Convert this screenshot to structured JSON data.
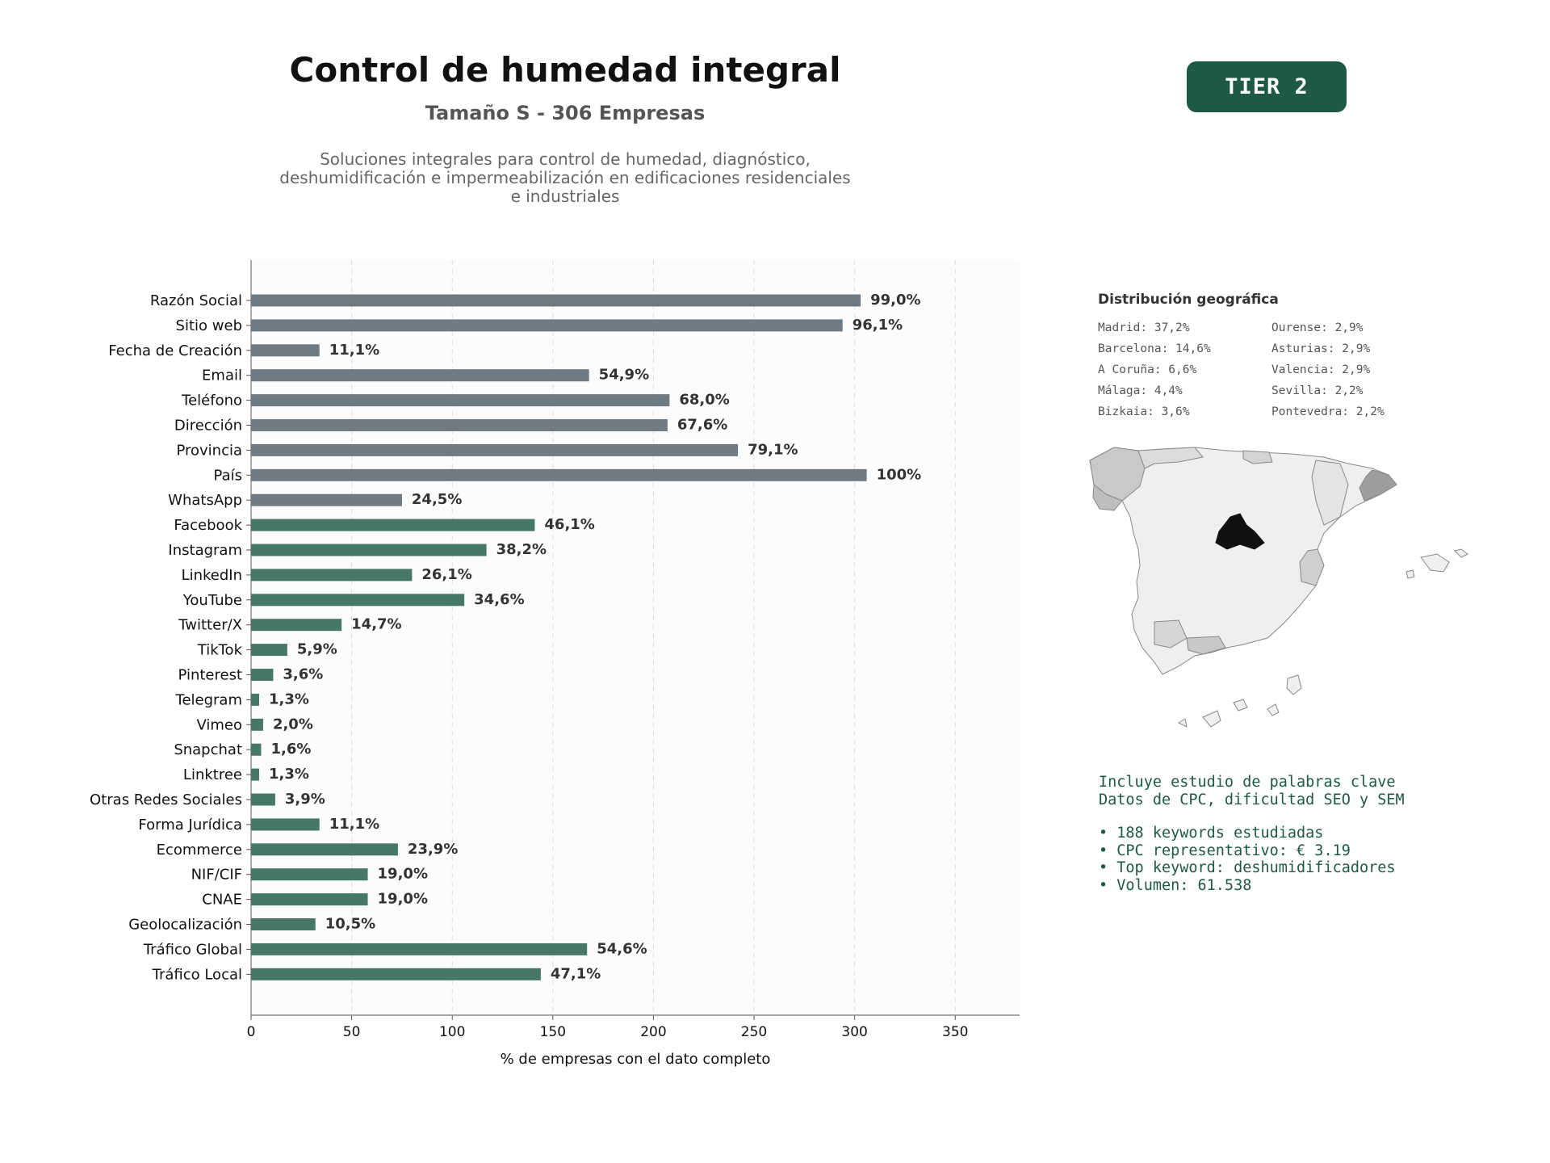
{
  "header": {
    "title": "Control de humedad integral",
    "subtitle": "Tamaño S - 306 Empresas",
    "description_lines": [
      "Soluciones integrales para control de humedad, diagnóstico,",
      "deshumidificación e impermeabilización en edificaciones residenciales",
      "e industriales"
    ],
    "tier_badge": "TIER 2"
  },
  "colors": {
    "bar_gray": "#6e7b84",
    "bar_green": "#477865",
    "accent_dark_green": "#1e5945"
  },
  "chart_data": {
    "type": "bar",
    "orientation": "horizontal",
    "xlabel": "% de empresas con el dato completo",
    "xlim": [
      0,
      382
    ],
    "xticks": [
      0,
      50,
      100,
      150,
      200,
      250,
      300,
      350
    ],
    "grid": "vertical-dashed",
    "categories": [
      "Razón Social",
      "Sitio web",
      "Fecha de Creación",
      "Email",
      "Teléfono",
      "Dirección",
      "Provincia",
      "País",
      "WhatsApp",
      "Facebook",
      "Instagram",
      "LinkedIn",
      "YouTube",
      "Twitter/X",
      "TikTok",
      "Pinterest",
      "Telegram",
      "Vimeo",
      "Snapchat",
      "Linktree",
      "Otras Redes Sociales",
      "Forma Jurídica",
      "Ecommerce",
      "NIF/CIF",
      "CNAE",
      "Geolocalización",
      "Tráfico Global",
      "Tráfico Local"
    ],
    "values": [
      303,
      294,
      34,
      168,
      208,
      207,
      242,
      306,
      75,
      141,
      117,
      80,
      106,
      45,
      18,
      11,
      4,
      6,
      5,
      4,
      12,
      34,
      73,
      58,
      58,
      32,
      167,
      144
    ],
    "labels": [
      "99,0%",
      "96,1%",
      "11,1%",
      "54,9%",
      "68,0%",
      "67,6%",
      "79,1%",
      "100%",
      "24,5%",
      "46,1%",
      "38,2%",
      "26,1%",
      "34,6%",
      "14,7%",
      "5,9%",
      "3,6%",
      "1,3%",
      "2,0%",
      "1,6%",
      "1,3%",
      "3,9%",
      "11,1%",
      "23,9%",
      "19,0%",
      "19,0%",
      "10,5%",
      "54,6%",
      "47,1%"
    ],
    "bar_color_groups": [
      "gray",
      "gray",
      "gray",
      "gray",
      "gray",
      "gray",
      "gray",
      "gray",
      "gray",
      "green",
      "green",
      "green",
      "green",
      "green",
      "green",
      "green",
      "green",
      "green",
      "green",
      "green",
      "green",
      "green",
      "green",
      "green",
      "green",
      "green",
      "green",
      "green"
    ]
  },
  "geo": {
    "title": "Distribución geográfica",
    "col1": [
      "Madrid: 37,2%",
      "Barcelona: 14,6%",
      "A Coruña: 6,6%",
      "Málaga: 4,4%",
      "Bizkaia: 3,6%"
    ],
    "col2": [
      "Ourense: 2,9%",
      "Asturias: 2,9%",
      "Valencia: 2,9%",
      "Sevilla: 2,2%",
      "Pontevedra: 2,2%"
    ]
  },
  "keywords": {
    "line1": "Incluye estudio de palabras clave",
    "line2": "Datos de CPC, dificultad SEO y SEM",
    "bullets": [
      "• 188 keywords estudiadas",
      "• CPC representativo: € 3.19",
      "• Top keyword: deshumidificadores",
      "• Volumen: 61.538"
    ]
  }
}
